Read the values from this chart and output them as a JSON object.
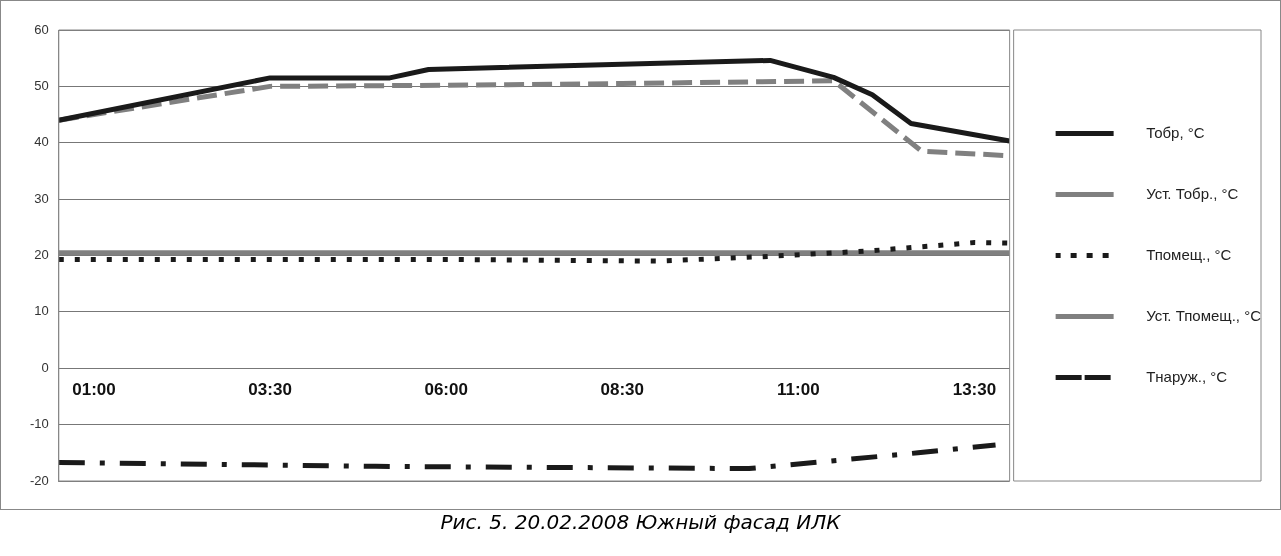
{
  "chart_data": {
    "type": "line",
    "title": "Рис. 5. 20.02.2008 Южный фасад ИЛК",
    "xlim": [
      0.5,
      14
    ],
    "xticks": [
      {
        "value": 1,
        "label": "01:00"
      },
      {
        "value": 3.5,
        "label": "03:30"
      },
      {
        "value": 6,
        "label": "06:00"
      },
      {
        "value": 8.5,
        "label": "08:30"
      },
      {
        "value": 11,
        "label": "11:00"
      },
      {
        "value": 13.5,
        "label": "13:30"
      }
    ],
    "ylim": [
      -20,
      60
    ],
    "yticks": [
      -20,
      -10,
      0,
      10,
      20,
      30,
      40,
      50,
      60
    ],
    "grid": "y",
    "legend": "right",
    "marker": "none",
    "series": [
      {
        "name": "Тобр, °C",
        "color": "#1a1a1a",
        "line_style": "solid",
        "x": [
          0.5,
          3.5,
          5.2,
          5.75,
          10.6,
          11.5,
          12.05,
          12.6,
          14
        ],
        "values": [
          44,
          51.5,
          51.5,
          53,
          54.6,
          51.6,
          48.5,
          43.4,
          40.3
        ]
      },
      {
        "name": "Уст. Тобр., °C",
        "color": "#808080",
        "line_style": "dashed",
        "x": [
          0.5,
          3.5,
          6,
          8.5,
          11.5,
          12.75,
          14
        ],
        "values": [
          44,
          50,
          50.2,
          50.5,
          51,
          38.5,
          37.7
        ]
      },
      {
        "name": "Тпомещ., °C",
        "color": "#1a1a1a",
        "line_style": "dotted",
        "x": [
          0.5,
          6,
          9,
          10.5,
          12,
          13.5,
          14
        ],
        "values": [
          19.3,
          19.3,
          19,
          19.8,
          20.8,
          22.3,
          22.2
        ]
      },
      {
        "name": "Уст. Тпомещ., °C",
        "color": "#808080",
        "line_style": "solid",
        "x": [
          0.5,
          14
        ],
        "values": [
          20.5,
          20.5
        ]
      },
      {
        "name": "Тнаруж., °C",
        "color": "#1a1a1a",
        "line_style": "dashdot",
        "x": [
          0.5,
          5,
          10.3,
          12.7,
          13.8
        ],
        "values": [
          -16.7,
          -17.4,
          -17.8,
          -15,
          -13.6
        ]
      }
    ]
  }
}
